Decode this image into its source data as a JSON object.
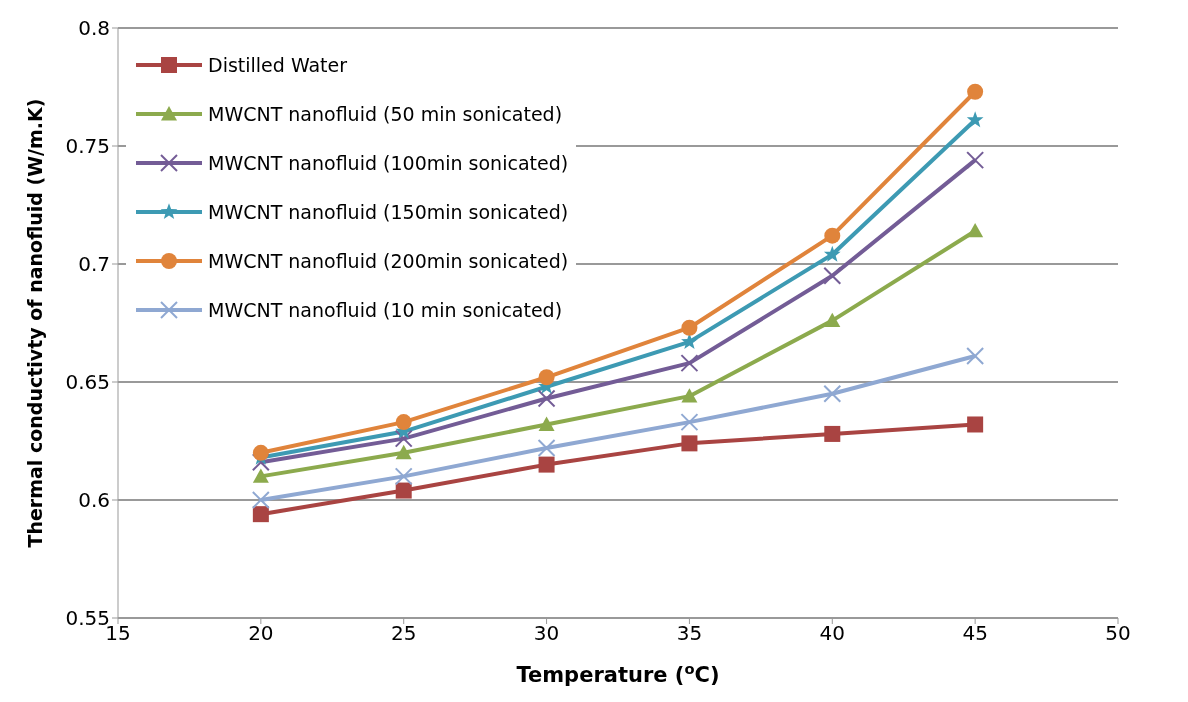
{
  "chart_data": {
    "type": "line",
    "xlabel": "Temperature ($^{o}$C)",
    "ylabel": "Thermal conductivty of nanofluid (W/m.K)",
    "x": [
      20,
      25,
      30,
      35,
      40,
      45
    ],
    "xlim": [
      15,
      50
    ],
    "xticks": [
      15,
      20,
      25,
      30,
      35,
      40,
      45,
      50
    ],
    "ylim": [
      0.55,
      0.8
    ],
    "yticks": [
      0.55,
      0.6,
      0.65,
      0.7,
      0.75,
      0.8
    ],
    "grid": "y",
    "legend": "top left",
    "series": [
      {
        "name": "Distilled Water",
        "color": "#a94442",
        "marker": "square",
        "values": [
          0.594,
          0.604,
          0.615,
          0.624,
          0.628,
          0.632
        ]
      },
      {
        "name": "MWCNT nanofluid (50 min sonicated)",
        "color": "#8caa4d",
        "marker": "triangle",
        "values": [
          0.61,
          0.62,
          0.632,
          0.644,
          0.676,
          0.714
        ]
      },
      {
        "name": "MWCNT nanofluid (100min sonicated)",
        "color": "#735c96",
        "marker": "cross",
        "values": [
          0.616,
          0.626,
          0.643,
          0.658,
          0.695,
          0.744
        ]
      },
      {
        "name": "MWCNT nanofluid (150min sonicated)",
        "color": "#3d9ab3",
        "marker": "star",
        "values": [
          0.618,
          0.629,
          0.648,
          0.667,
          0.704,
          0.761
        ]
      },
      {
        "name": "MWCNT nanofluid (200min sonicated)",
        "color": "#e0843b",
        "marker": "circle",
        "values": [
          0.62,
          0.633,
          0.652,
          0.673,
          0.712,
          0.773
        ]
      },
      {
        "name": "MWCNT nanofluid (10 min sonicated)",
        "color": "#8fa8d2",
        "marker": "cross",
        "values": [
          0.6,
          0.61,
          0.622,
          0.633,
          0.645,
          0.661
        ]
      }
    ]
  }
}
